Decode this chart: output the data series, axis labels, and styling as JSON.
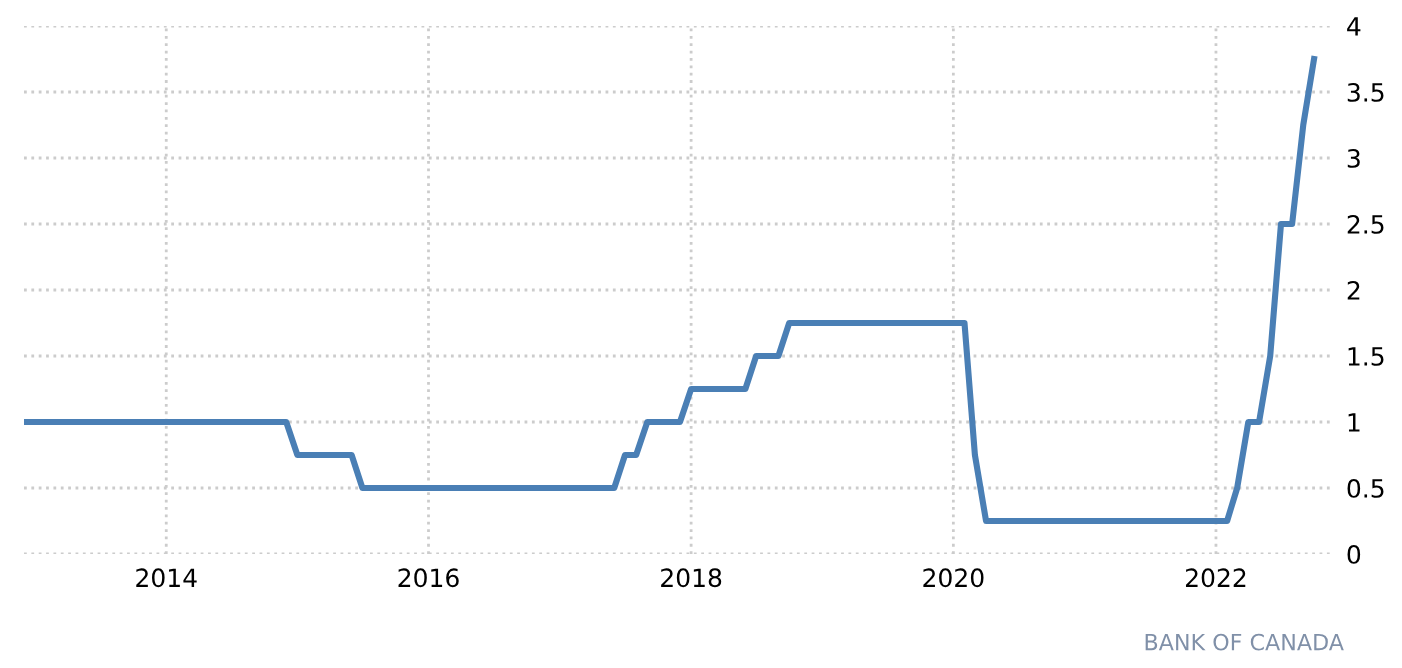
{
  "chart_data": {
    "type": "line",
    "x": [
      "2012-12-01",
      "2014-12-01",
      "2015-01-01",
      "2015-06-01",
      "2015-07-01",
      "2017-06-01",
      "2017-07-01",
      "2017-08-01",
      "2017-09-01",
      "2017-12-01",
      "2018-01-01",
      "2018-06-01",
      "2018-07-01",
      "2018-09-01",
      "2018-10-01",
      "2020-02-01",
      "2020-03-01",
      "2020-04-01",
      "2022-02-01",
      "2022-03-01",
      "2022-04-01",
      "2022-05-01",
      "2022-06-01",
      "2022-07-01",
      "2022-08-01",
      "2022-09-01",
      "2022-10-01"
    ],
    "series": [
      {
        "color": "#4a7fb5",
        "values": [
          1,
          1,
          0.75,
          0.75,
          0.5,
          0.5,
          0.75,
          0.75,
          1,
          1,
          1.25,
          1.25,
          1.5,
          1.5,
          1.75,
          1.75,
          0.75,
          0.25,
          0.25,
          0.5,
          1,
          1,
          1.5,
          2.5,
          2.5,
          3.25,
          3.75
        ]
      }
    ],
    "xlim": [
      "2012-12-01",
      "2022-11-20"
    ],
    "xticks": [
      {
        "value": "2014-01-01",
        "label": "2014"
      },
      {
        "value": "2016-01-01",
        "label": "2016"
      },
      {
        "value": "2018-01-01",
        "label": "2018"
      },
      {
        "value": "2020-01-01",
        "label": "2020"
      },
      {
        "value": "2022-01-01",
        "label": "2022"
      }
    ],
    "ylim": [
      0,
      4
    ],
    "yticks": [
      0,
      0.5,
      1,
      1.5,
      2,
      2.5,
      3,
      3.5,
      4
    ],
    "grid": true,
    "legend": false,
    "annotations": [
      "BANK OF CANADA"
    ]
  }
}
